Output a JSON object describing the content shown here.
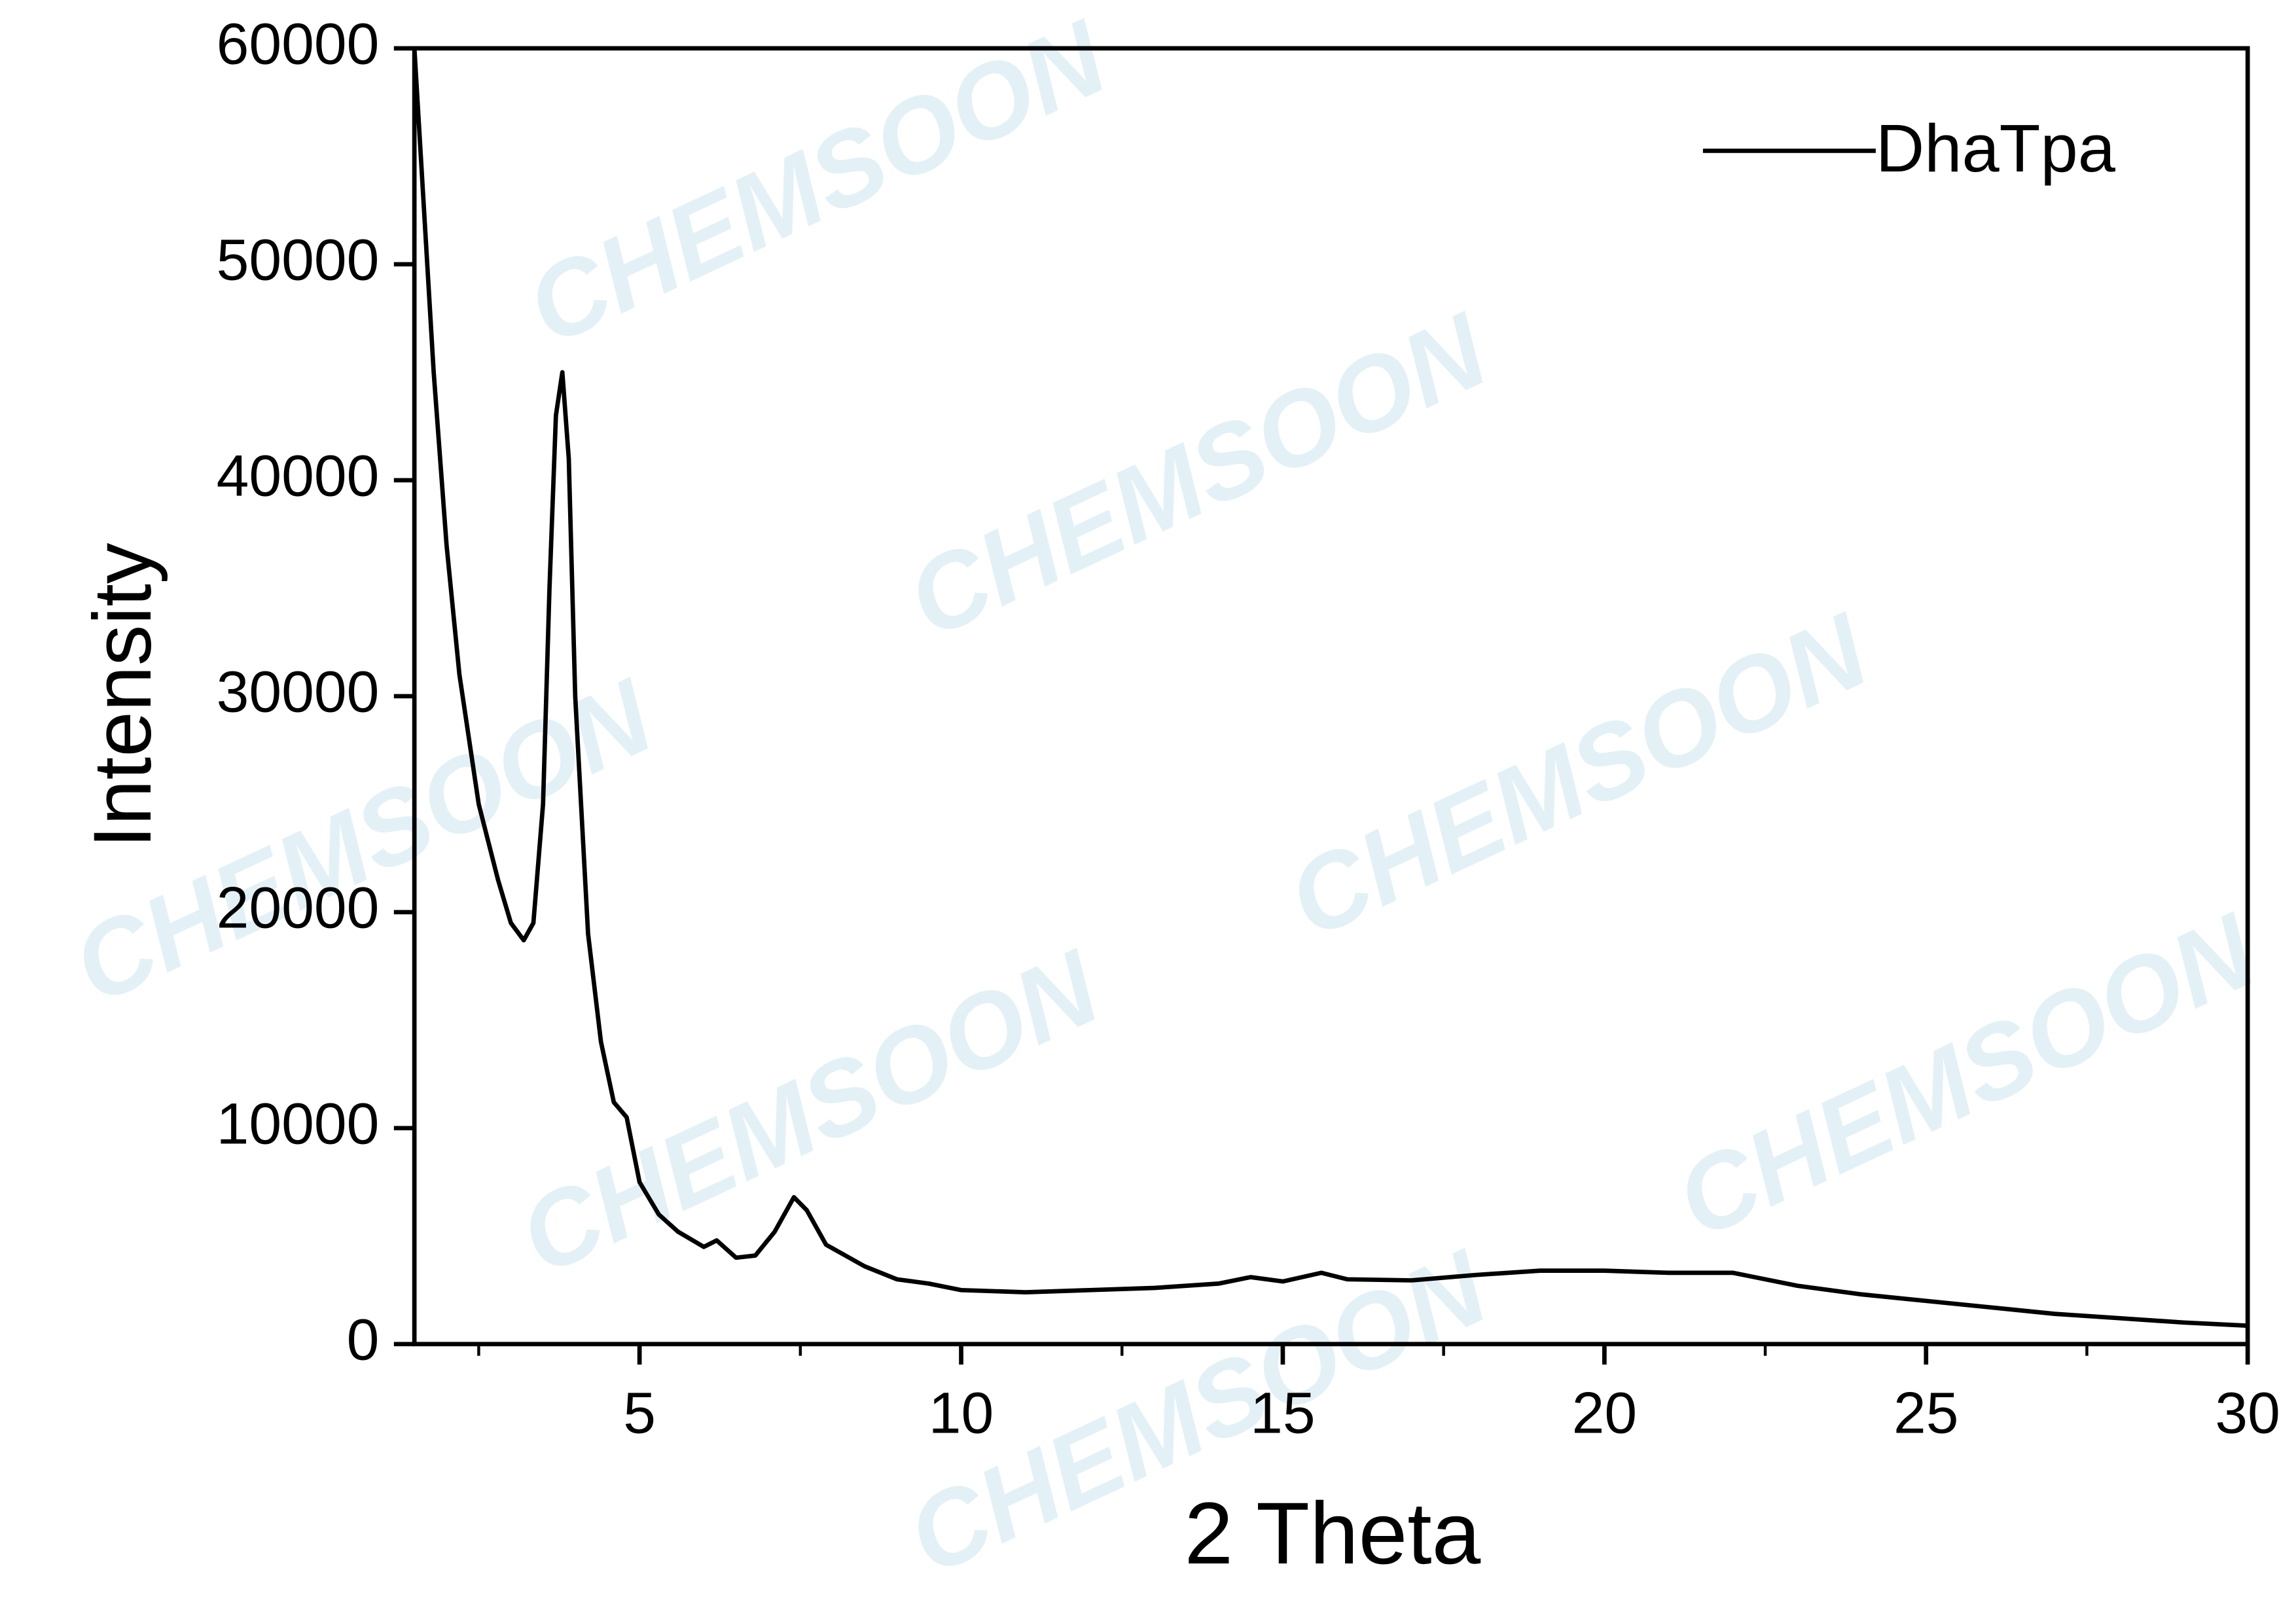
{
  "chart_data": {
    "type": "line",
    "watermark": "CHEMSOON",
    "xlabel": "2 Theta",
    "ylabel": "Intensity",
    "x": [
      1.5,
      1.6,
      1.8,
      2.0,
      2.2,
      2.5,
      2.8,
      3.0,
      3.2,
      3.35,
      3.5,
      3.6,
      3.7,
      3.8,
      3.9,
      4.0,
      4.2,
      4.4,
      4.6,
      4.8,
      5.0,
      5.3,
      5.6,
      6.0,
      6.2,
      6.5,
      6.8,
      7.1,
      7.4,
      7.6,
      7.9,
      8.5,
      9.0,
      9.5,
      10,
      11,
      12,
      13,
      14,
      14.5,
      15,
      15.6,
      16,
      17,
      18,
      19,
      20,
      21,
      22,
      23,
      24,
      25,
      26,
      27,
      28,
      29,
      30
    ],
    "series": [
      {
        "name": "DhaTpa",
        "color": "#000000",
        "values": [
          60000,
          55000,
          45000,
          37000,
          31000,
          25000,
          21500,
          19500,
          18700,
          19500,
          25000,
          35000,
          43000,
          45000,
          41000,
          30000,
          19000,
          14000,
          11200,
          10500,
          7500,
          6000,
          5200,
          4500,
          4800,
          4000,
          4100,
          5200,
          6800,
          6200,
          4600,
          3600,
          3000,
          2800,
          2500,
          2400,
          2500,
          2600,
          2800,
          3100,
          2900,
          3300,
          3000,
          2950,
          3200,
          3400,
          3400,
          3300,
          3300,
          2700,
          2300,
          2000,
          1700,
          1400,
          1200,
          1000,
          850
        ]
      }
    ],
    "xlim": [
      1.5,
      30
    ],
    "ylim": [
      0,
      60000
    ],
    "xticks": [
      5,
      10,
      15,
      20,
      25,
      30
    ],
    "xminorticks": [
      2.5,
      7.5,
      12.5,
      17.5,
      22.5,
      27.5
    ],
    "yticks": [
      0,
      10000,
      20000,
      30000,
      40000,
      50000,
      60000
    ],
    "legend": "upper right"
  }
}
